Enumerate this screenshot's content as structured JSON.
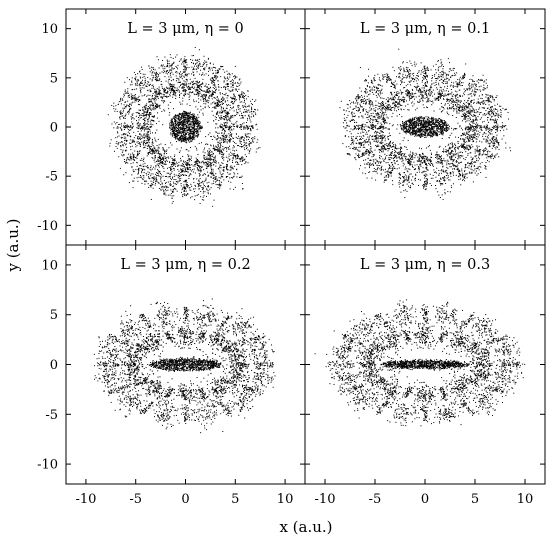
{
  "chart_data": {
    "type": "scatter",
    "xlabel": "x (a.u.)",
    "ylabel": "y (a.u.)",
    "xlim": [
      -12,
      12
    ],
    "ylim": [
      -12,
      12
    ],
    "x_ticks": [
      "-10",
      "-5",
      "0",
      "5",
      "10"
    ],
    "y_ticks": [
      "10",
      "5",
      "0",
      "-5",
      "-10"
    ],
    "grid": false,
    "marker_color": "#000000",
    "panels": [
      {
        "title": "L = 3 μm, η = 0",
        "eta": 0,
        "description_of_pattern": "central dense disk r≈1.5, ring of 10 lobes at r≈4, outer ring of 12 lobes at r≈6",
        "core": {
          "rx": 1.6,
          "ry": 1.5
        },
        "inner_ring": {
          "rx": 4.1,
          "ry": 4.1,
          "lobes": 10
        },
        "outer_ring": {
          "rx": 6.2,
          "ry": 6.2,
          "lobes": 12
        }
      },
      {
        "title": "L = 3 μm, η = 0.1",
        "eta": 0.1,
        "core": {
          "rx": 2.4,
          "ry": 1.0
        },
        "inner_ring": {
          "rx": 4.8,
          "ry": 3.4,
          "lobes": 10
        },
        "outer_ring": {
          "rx": 7.0,
          "ry": 5.4,
          "lobes": 12
        }
      },
      {
        "title": "L = 3 μm, η = 0.2",
        "eta": 0.2,
        "core": {
          "rx": 3.6,
          "ry": 0.6
        },
        "inner_ring": {
          "rx": 5.4,
          "ry": 3.0,
          "lobes": 10
        },
        "outer_ring": {
          "rx": 7.8,
          "ry": 5.0,
          "lobes": 12
        }
      },
      {
        "title": "L = 3 μm, η = 0.3",
        "eta": 0.3,
        "core": {
          "rx": 4.4,
          "ry": 0.4
        },
        "inner_ring": {
          "rx": 5.8,
          "ry": 3.0,
          "lobes": 10
        },
        "outer_ring": {
          "rx": 8.4,
          "ry": 5.0,
          "lobes": 12
        }
      }
    ]
  }
}
